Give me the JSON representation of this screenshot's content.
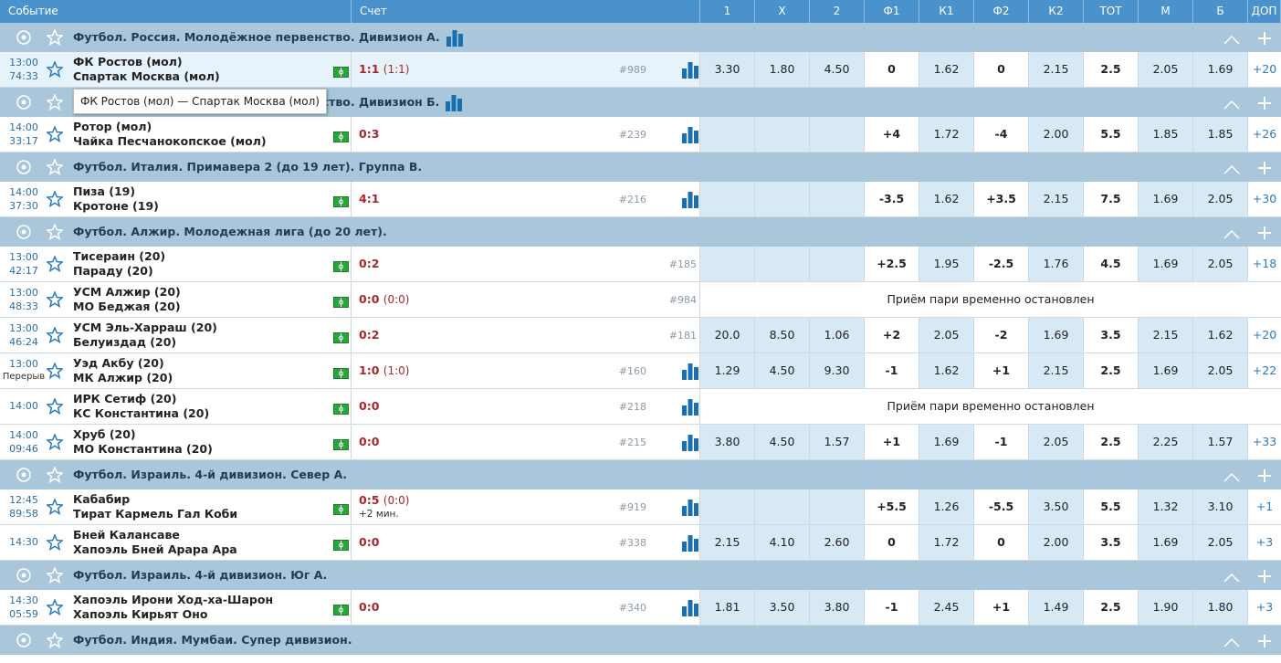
{
  "header": [
    "Событие",
    "Счет",
    "1",
    "X",
    "2",
    "Ф1",
    "К1",
    "Ф2",
    "К2",
    "ТОТ",
    "М",
    "Б",
    "ДОП"
  ],
  "tooltip": "ФК Ростов (мол) — Спартак Москва (мол)",
  "groups": [
    {
      "league": "Футбол. Россия. Молодёжное первенство. Дивизион А.",
      "league_stats": true,
      "matches": [
        {
          "time": "13:00",
          "clock": "74:33",
          "team1": "ФК Ростов (мол)",
          "team2": "Спартак Москва (мол)",
          "score": "1:1",
          "half": "(1:1)",
          "id": "#989",
          "stats": true,
          "highlight": true,
          "odds": [
            "3.30",
            "1.80",
            "4.50",
            "0",
            "1.62",
            "0",
            "2.15",
            "2.5",
            "2.05",
            "1.69"
          ],
          "extra": "+20"
        }
      ]
    },
    {
      "league": "Футбол. Россия. Молодёжное первенство. Дивизион Б.",
      "league_stats": true,
      "matches": [
        {
          "time": "14:00",
          "clock": "33:17",
          "team1": "Ротор (мол)",
          "team2": "Чайка Песчанокопское (мол)",
          "score": "0:3",
          "id": "#239",
          "stats": true,
          "odds": [
            null,
            null,
            null,
            "+4",
            "1.72",
            "-4",
            "2.00",
            "5.5",
            "1.85",
            "1.85"
          ],
          "extra": "+26"
        }
      ]
    },
    {
      "league": "Футбол. Италия. Примавера 2 (до 19 лет). Группа B.",
      "matches": [
        {
          "time": "14:00",
          "clock": "37:30",
          "team1": "Пиза (19)",
          "team2": "Кротоне (19)",
          "score": "4:1",
          "id": "#216",
          "stats": true,
          "odds": [
            null,
            null,
            null,
            "-3.5",
            "1.62",
            "+3.5",
            "2.15",
            "7.5",
            "1.69",
            "2.05"
          ],
          "extra": "+30"
        }
      ]
    },
    {
      "league": "Футбол. Алжир. Молодежная лига (до 20 лет).",
      "matches": [
        {
          "time": "13:00",
          "clock": "42:17",
          "team1": "Тисераин (20)",
          "team2": "Параду (20)",
          "score": "0:2",
          "id": "#185",
          "odds": [
            null,
            null,
            null,
            "+2.5",
            "1.95",
            "-2.5",
            "1.76",
            "4.5",
            "1.69",
            "2.05"
          ],
          "extra": "+18"
        },
        {
          "time": "13:00",
          "clock": "48:33",
          "team1": "УСМ Алжир (20)",
          "team2": "МО Беджая (20)",
          "score": "0:0",
          "half": "(0:0)",
          "id": "#984",
          "suspended": "Приём пари временно остановлен"
        },
        {
          "time": "13:00",
          "clock": "46:24",
          "team1": "УСМ Эль-Харраш (20)",
          "team2": "Белуиздад (20)",
          "score": "0:2",
          "id": "#181",
          "odds": [
            "20.0",
            "8.50",
            "1.06",
            "+2",
            "2.05",
            "-2",
            "1.69",
            "3.5",
            "2.15",
            "1.62"
          ],
          "extra": "+20"
        },
        {
          "time": "13:00",
          "clock": "Перерыв",
          "team1": "Уэд Акбу (20)",
          "team2": "МК Алжир (20)",
          "score": "1:0",
          "half": "(1:0)",
          "id": "#160",
          "stats": true,
          "odds": [
            "1.29",
            "4.50",
            "9.30",
            "-1",
            "1.62",
            "+1",
            "2.15",
            "2.5",
            "1.69",
            "2.05"
          ],
          "extra": "+22"
        },
        {
          "time": "14:00",
          "team1": "ИРК Сетиф (20)",
          "team2": "КС Константина (20)",
          "score": "0:0",
          "id": "#218",
          "stats": true,
          "suspended": "Приём пари временно остановлен"
        },
        {
          "time": "14:00",
          "clock": "09:46",
          "team1": "Хруб (20)",
          "team2": "МО Константина (20)",
          "score": "0:0",
          "id": "#215",
          "stats": true,
          "odds": [
            "3.80",
            "4.50",
            "1.57",
            "+1",
            "1.69",
            "-1",
            "2.05",
            "2.5",
            "2.25",
            "1.57"
          ],
          "extra": "+33"
        }
      ]
    },
    {
      "league": "Футбол. Израиль. 4-й дивизион. Север А.",
      "matches": [
        {
          "time": "12:45",
          "clock": "89:58",
          "team1": "Кабабир",
          "team2": "Тират Кармель Гал Коби",
          "score": "0:5",
          "half": "(0:0)",
          "added": "+2 мин.",
          "id": "#919",
          "stats": true,
          "odds": [
            null,
            null,
            null,
            "+5.5",
            "1.26",
            "-5.5",
            "3.50",
            "5.5",
            "1.32",
            "3.10"
          ],
          "extra": "+1"
        },
        {
          "time": "14:30",
          "team1": "Бней Калансаве",
          "team2": "Хапоэль Бней Арара Ара",
          "score": "0:0",
          "id": "#338",
          "stats": true,
          "odds": [
            "2.15",
            "4.10",
            "2.60",
            "0",
            "1.72",
            "0",
            "2.00",
            "3.5",
            "1.69",
            "2.05"
          ],
          "extra": "+3"
        }
      ]
    },
    {
      "league": "Футбол. Израиль. 4-й дивизион. Юг А.",
      "matches": [
        {
          "time": "14:30",
          "clock": "05:59",
          "team1": "Хапоэль Ирони Ход-ха-Шарон",
          "team2": "Хапоэль Кирьят Оно",
          "score": "0:0",
          "id": "#340",
          "stats": true,
          "odds": [
            "1.81",
            "3.50",
            "3.80",
            "-1",
            "2.45",
            "+1",
            "1.49",
            "2.5",
            "1.90",
            "1.80"
          ],
          "extra": "+3"
        }
      ]
    },
    {
      "league": "Футбол. Индия. Мумбаи. Супер дивизион.",
      "matches": []
    }
  ]
}
